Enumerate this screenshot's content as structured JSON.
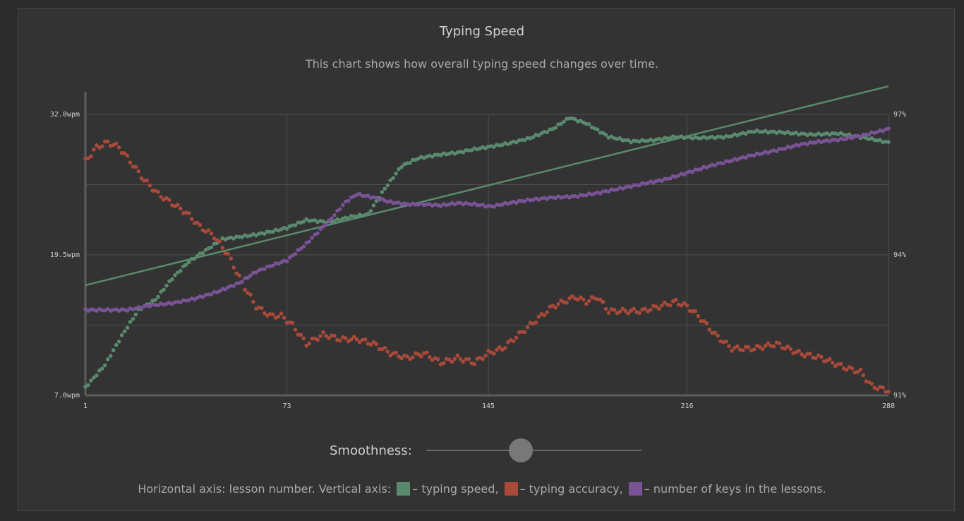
{
  "header": {
    "title": "Typing Speed",
    "subtitle": "This chart shows how overall typing speed changes over time."
  },
  "controls": {
    "smoothness_label": "Smoothness:",
    "smoothness_value": 0.44
  },
  "legend": {
    "prefix": "Horizontal axis: lesson number. Vertical axis:",
    "speed_text": "– typing speed,",
    "accuracy_text": "– typing accuracy,",
    "keys_text": "– number of keys in the lessons."
  },
  "colors": {
    "speed": "#5a8a6e",
    "accuracy": "#a9493a",
    "keys": "#7a5296",
    "grid": "#4f4f4f",
    "axis": "#5c5c5c"
  },
  "chart_data": {
    "type": "scatter",
    "title": "Typing Speed",
    "subtitle": "This chart shows how overall typing speed changes over time.",
    "xlabel": "lesson number",
    "ylabel": "typing speed",
    "x_ticks": [
      "1",
      "73",
      "145",
      "216",
      "288"
    ],
    "y_ticks_left": [
      "7.0wpm",
      "19.5wpm",
      "32.0wpm"
    ],
    "y_ticks_right": [
      "91%",
      "94%",
      "97%"
    ],
    "xlim": [
      1,
      288
    ],
    "ylim": [
      7.0,
      32.0
    ],
    "ylim_right": [
      91,
      97
    ],
    "grid": true,
    "series": [
      {
        "name": "typing speed",
        "color": "#5a8a6e",
        "axis": "left",
        "x": [
          1,
          8,
          14,
          20,
          26,
          32,
          38,
          44,
          50,
          56,
          62,
          68,
          73,
          80,
          88,
          96,
          102,
          108,
          114,
          120,
          127,
          134,
          140,
          145,
          152,
          160,
          168,
          174,
          180,
          188,
          196,
          204,
          212,
          220,
          230,
          240,
          250,
          260,
          270,
          280,
          288
        ],
        "y": [
          7.7,
          9.7,
          12.3,
          14.6,
          15.5,
          17.4,
          18.9,
          19.9,
          20.9,
          21.1,
          21.3,
          21.6,
          21.9,
          22.6,
          22.4,
          22.9,
          23.1,
          25.4,
          27.4,
          28.1,
          28.4,
          28.6,
          28.9,
          29.1,
          29.4,
          29.9,
          30.7,
          31.7,
          31.2,
          30.0,
          29.6,
          29.7,
          30.0,
          29.9,
          30.0,
          30.5,
          30.4,
          30.2,
          30.3,
          29.9,
          29.5
        ]
      },
      {
        "name": "typing accuracy",
        "color": "#a9493a",
        "axis": "right",
        "x": [
          1,
          5,
          9,
          13,
          17,
          22,
          27,
          32,
          37,
          42,
          47,
          52,
          57,
          62,
          67,
          71,
          75,
          80,
          86,
          92,
          98,
          104,
          110,
          116,
          122,
          128,
          134,
          140,
          145,
          150,
          156,
          162,
          168,
          172,
          176,
          180,
          184,
          188,
          194,
          200,
          206,
          212,
          216,
          220,
          226,
          232,
          240,
          248,
          256,
          264,
          272,
          278,
          282,
          288
        ],
        "y": [
          96.0,
          96.3,
          96.4,
          96.3,
          96.0,
          95.6,
          95.3,
          95.1,
          94.9,
          94.6,
          94.4,
          94.0,
          93.4,
          92.9,
          92.7,
          92.7,
          92.5,
          92.1,
          92.3,
          92.2,
          92.2,
          92.1,
          91.9,
          91.8,
          91.9,
          91.7,
          91.8,
          91.7,
          91.9,
          92.0,
          92.3,
          92.6,
          92.9,
          93.0,
          93.1,
          93.0,
          93.1,
          92.8,
          92.8,
          92.8,
          92.9,
          93.0,
          92.9,
          92.7,
          92.3,
          92.0,
          92.0,
          92.1,
          91.9,
          91.8,
          91.6,
          91.5,
          91.2,
          91.1
        ]
      },
      {
        "name": "number of keys in the lessons",
        "color": "#7a5296",
        "axis": "left",
        "x": [
          1,
          8,
          16,
          24,
          32,
          40,
          48,
          56,
          62,
          68,
          73,
          80,
          88,
          94,
          98,
          104,
          110,
          116,
          122,
          128,
          134,
          140,
          146,
          152,
          160,
          168,
          176,
          184,
          192,
          200,
          208,
          216,
          224,
          232,
          240,
          248,
          256,
          264,
          272,
          280,
          288
        ],
        "y": [
          14.6,
          14.6,
          14.6,
          15.0,
          15.2,
          15.6,
          16.2,
          17.0,
          18.0,
          18.6,
          19.0,
          20.5,
          22.5,
          24.2,
          24.9,
          24.6,
          24.2,
          24.0,
          24.0,
          23.9,
          24.1,
          24.0,
          23.8,
          24.1,
          24.4,
          24.6,
          24.7,
          25.0,
          25.4,
          25.8,
          26.2,
          26.8,
          27.4,
          27.9,
          28.4,
          28.8,
          29.3,
          29.6,
          29.8,
          30.2,
          30.7
        ]
      }
    ],
    "trend_line": {
      "series": "typing speed",
      "x": [
        1,
        288
      ],
      "y": [
        16.8,
        34.5
      ]
    }
  }
}
